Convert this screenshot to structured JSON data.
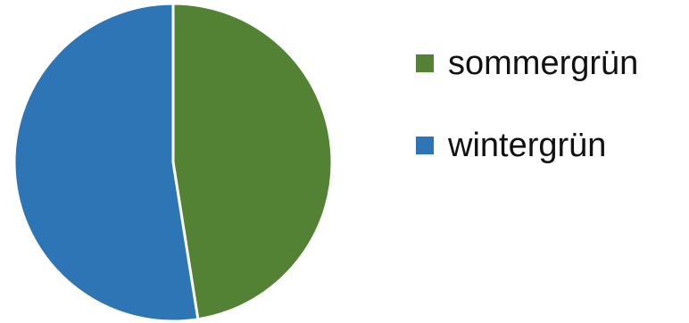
{
  "chart_data": {
    "type": "pie",
    "title": "",
    "categories": [
      "sommergrün",
      "wintergrün"
    ],
    "values": [
      47.5,
      52.5
    ],
    "colors": [
      "#548235",
      "#2e75b6"
    ],
    "start_angle_deg": 0,
    "direction": "clockwise",
    "legend": {
      "position": "right",
      "entries": [
        "sommergrün",
        "wintergrün"
      ]
    }
  }
}
